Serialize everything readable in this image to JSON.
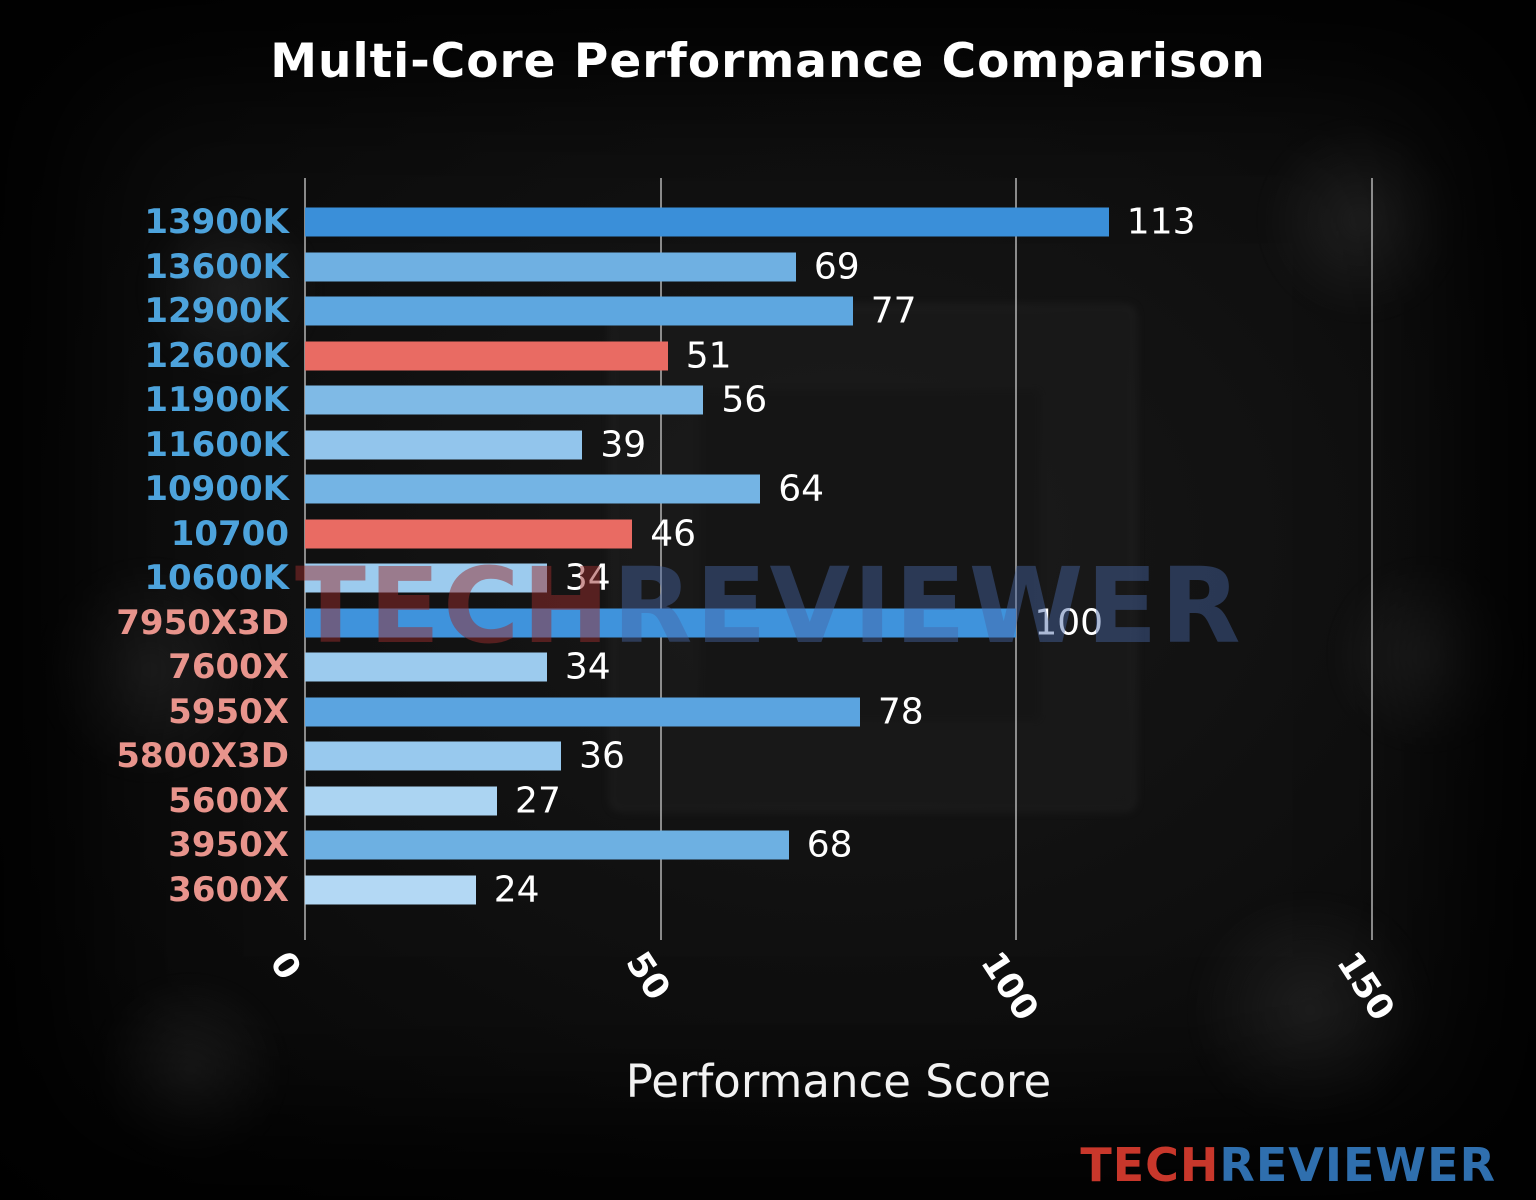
{
  "title": "Multi-Core Performance Comparison",
  "watermark": {
    "tech": "TECH",
    "reviewer": "REVIEWER"
  },
  "logo": {
    "tech": "TECH",
    "reviewer": "REVIEWER"
  },
  "colors": {
    "intel_label": "#4da3dc",
    "amd_label": "#e8948c",
    "value_label": "#ffffff",
    "grid": "#cdcdcd",
    "title": "#ffffff",
    "highlight_bar": "#e96b63"
  },
  "chart_data": {
    "type": "bar",
    "orientation": "horizontal",
    "title": "Multi-Core Performance Comparison",
    "xlabel": "Performance Score",
    "ylabel": "",
    "xlim": [
      0,
      150
    ],
    "xticks": [
      0,
      50,
      100,
      150
    ],
    "grid": true,
    "legend": "none",
    "categories": [
      "13900K",
      "13600K",
      "12900K",
      "12600K",
      "11900K",
      "11600K",
      "10900K",
      "10700",
      "10600K",
      "7950X3D",
      "7600X",
      "5950X",
      "5800X3D",
      "5600X",
      "3950X",
      "3600X"
    ],
    "values": [
      113,
      69,
      77,
      51,
      56,
      39,
      64,
      46,
      34,
      100,
      34,
      78,
      36,
      27,
      68,
      24
    ],
    "bar_colors": [
      "#3a8fd9",
      "#6fb0e2",
      "#5ea7e0",
      "#e96b63",
      "#7fbae6",
      "#92c5ec",
      "#74b4e4",
      "#e96b63",
      "#9ccbee",
      "#3f93dc",
      "#9ccbee",
      "#5ba4e0",
      "#98c9ee",
      "#abd4f2",
      "#6db0e2",
      "#b3d8f4"
    ],
    "label_groups": [
      "intel",
      "intel",
      "intel",
      "intel",
      "intel",
      "intel",
      "intel",
      "intel",
      "intel",
      "amd",
      "amd",
      "amd",
      "amd",
      "amd",
      "amd",
      "amd"
    ]
  }
}
